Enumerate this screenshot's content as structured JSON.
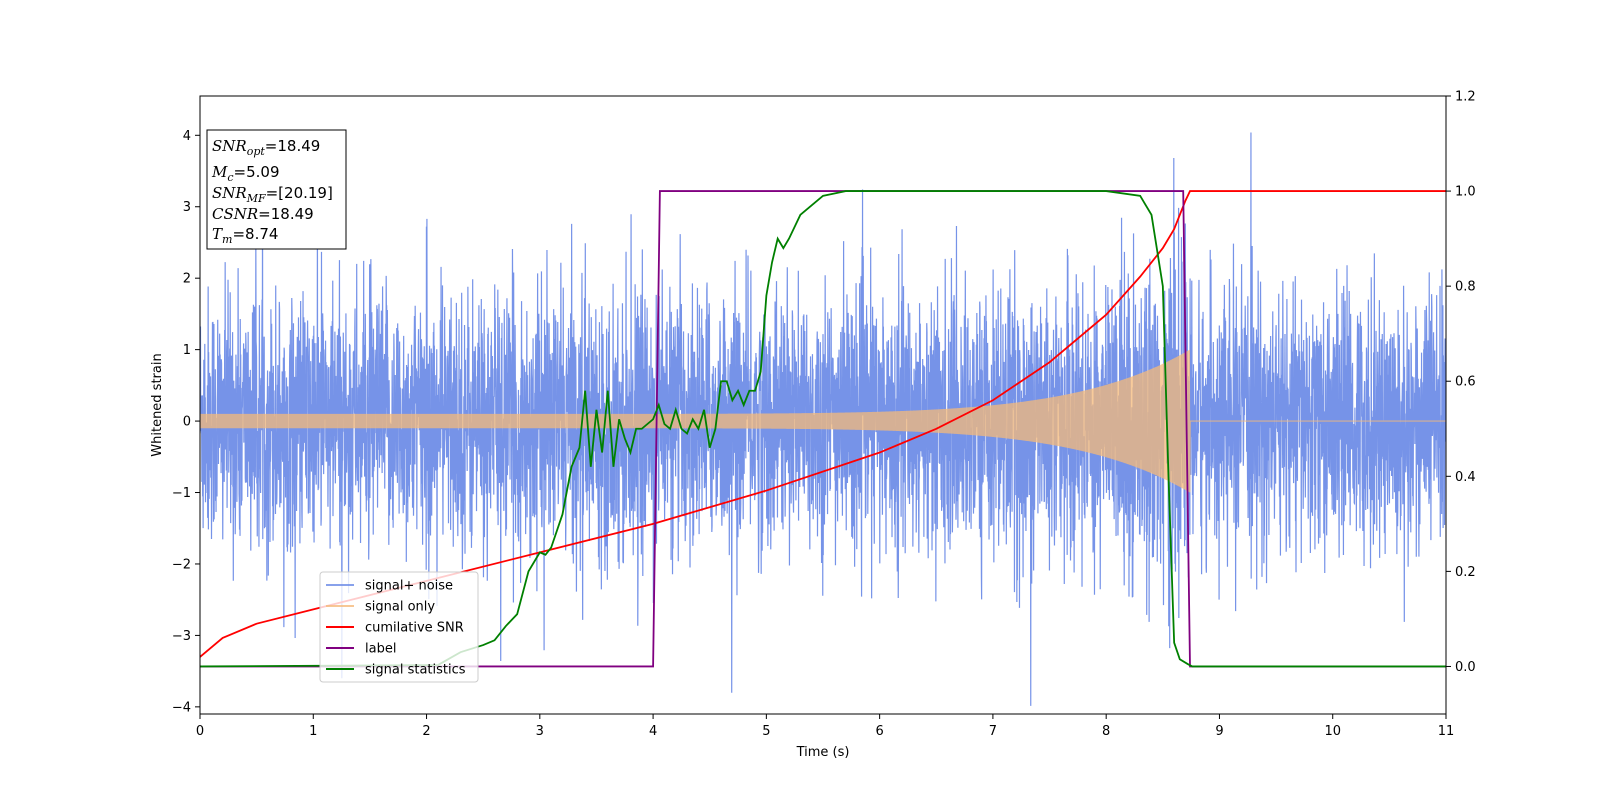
{
  "chart_data": {
    "type": "line",
    "xlabel": "Time (s)",
    "ylabel": "Whitened strain",
    "xlim": [
      0,
      11
    ],
    "ylim_left": [
      -4.1,
      4.55
    ],
    "ylim_right": [
      -0.1,
      1.2
    ],
    "xticks": [
      0,
      1,
      2,
      3,
      4,
      5,
      6,
      7,
      8,
      9,
      10,
      11
    ],
    "yticks_left": [
      -4,
      -3,
      -2,
      -1,
      0,
      1,
      2,
      3,
      4
    ],
    "yticks_right": [
      0.0,
      0.2,
      0.4,
      0.6,
      0.8,
      1.0,
      1.2
    ],
    "grid": false,
    "legend_position": "lower-left",
    "colors": {
      "noise": "#6a8ae6",
      "signal": "#f5b97a",
      "cumulative_snr": "#ff0000",
      "label": "#800080",
      "signal_statistics": "#008000"
    },
    "series": [
      {
        "name": "signal+ noise",
        "axis": "left",
        "description_values": "whitened noise, std ~0.9, spikes to 4.2"
      },
      {
        "name": "signal only",
        "axis": "left",
        "amplitude_start": 0.1,
        "amplitude_end": 1.0,
        "merger_time": 8.74
      },
      {
        "name": "cumilative SNR",
        "axis": "right",
        "x": [
          0.0,
          0.2,
          0.5,
          1.0,
          2.0,
          3.0,
          4.0,
          5.0,
          6.0,
          6.5,
          7.0,
          7.5,
          8.0,
          8.3,
          8.5,
          8.6,
          8.7,
          8.74,
          8.74,
          11.0
        ],
        "y": [
          0.02,
          0.06,
          0.09,
          0.12,
          0.18,
          0.24,
          0.3,
          0.37,
          0.45,
          0.5,
          0.56,
          0.64,
          0.74,
          0.82,
          0.88,
          0.92,
          0.98,
          1.0,
          1.0,
          1.0
        ]
      },
      {
        "name": "label",
        "axis": "right",
        "x": [
          0.0,
          4.0,
          4.06,
          8.68,
          8.74,
          11.0
        ],
        "y": [
          0.0,
          0.0,
          1.0,
          1.0,
          0.0,
          0.0
        ]
      },
      {
        "name": "signal statistics",
        "axis": "right",
        "x": [
          0.0,
          2.1,
          2.3,
          2.5,
          2.6,
          2.7,
          2.8,
          2.9,
          3.0,
          3.05,
          3.1,
          3.2,
          3.28,
          3.35,
          3.4,
          3.45,
          3.5,
          3.55,
          3.6,
          3.65,
          3.7,
          3.75,
          3.8,
          3.85,
          3.9,
          4.0,
          4.05,
          4.1,
          4.15,
          4.2,
          4.25,
          4.3,
          4.35,
          4.4,
          4.45,
          4.5,
          4.55,
          4.6,
          4.65,
          4.7,
          4.75,
          4.8,
          4.85,
          4.9,
          4.95,
          5.0,
          5.05,
          5.1,
          5.15,
          5.2,
          5.3,
          5.4,
          5.5,
          5.6,
          5.7,
          5.8,
          5.9,
          6.0,
          6.5,
          7.0,
          7.5,
          8.0,
          8.3,
          8.4,
          8.5,
          8.55,
          8.6,
          8.65,
          8.72,
          8.76,
          9.0,
          11.0
        ],
        "y": [
          0.0,
          0.003,
          0.03,
          0.045,
          0.055,
          0.085,
          0.11,
          0.2,
          0.24,
          0.235,
          0.25,
          0.32,
          0.42,
          0.46,
          0.58,
          0.42,
          0.54,
          0.45,
          0.58,
          0.42,
          0.52,
          0.48,
          0.45,
          0.5,
          0.5,
          0.52,
          0.55,
          0.51,
          0.5,
          0.54,
          0.5,
          0.49,
          0.52,
          0.5,
          0.54,
          0.46,
          0.5,
          0.6,
          0.6,
          0.56,
          0.58,
          0.55,
          0.58,
          0.58,
          0.62,
          0.78,
          0.85,
          0.9,
          0.88,
          0.9,
          0.95,
          0.97,
          0.99,
          0.995,
          1.0,
          1.0,
          1.0,
          1.0,
          1.0,
          1.0,
          1.0,
          1.0,
          0.99,
          0.95,
          0.8,
          0.4,
          0.05,
          0.015,
          0.005,
          0.0,
          0.0,
          0.0
        ]
      }
    ]
  },
  "annotation": {
    "lines": [
      {
        "sym": "SNR",
        "sub": "opt",
        "rest": "=18.49"
      },
      {
        "sym": "M",
        "sub": "c",
        "rest": "=5.09"
      },
      {
        "sym": "SNR",
        "sub": "MF",
        "rest": "=[20.19]"
      },
      {
        "sym": "CSNR",
        "sub": "",
        "rest": "=18.49"
      },
      {
        "sym": "T",
        "sub": "m",
        "rest": "=8.74"
      }
    ]
  }
}
